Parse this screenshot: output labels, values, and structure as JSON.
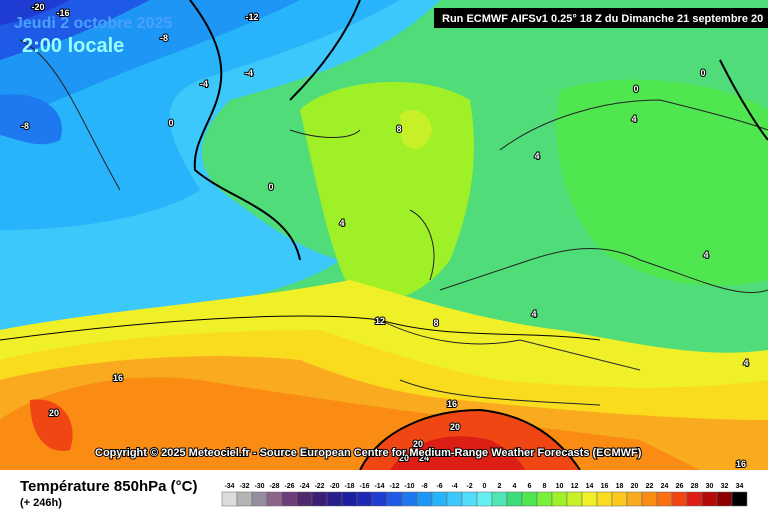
{
  "header": {
    "date": "Jeudi 2 octobre 2025",
    "time": "2:00 locale",
    "run": "Run ECMWF AIFSv1 0.25° 18 Z du Dimanche 21 septembre 20"
  },
  "copyright": "Copyright © 2025 Meteociel.fr - Source European Centre for Medium-Range Weather Forecasts (ECMWF)",
  "contour_labels": [
    -20,
    -16,
    -12,
    -8,
    -8,
    -4,
    -4,
    0,
    0,
    0,
    0,
    4,
    4,
    4,
    4,
    4,
    4,
    8,
    8,
    12,
    16,
    16,
    16,
    20,
    20,
    20,
    20,
    24
  ],
  "footer": {
    "title": "Température 850hPa (°C)",
    "lead": "(+ 246h)"
  },
  "color_scale": {
    "values": [
      -34,
      -32,
      -30,
      -28,
      -26,
      -24,
      -22,
      -20,
      -18,
      -16,
      -14,
      -12,
      -10,
      -8,
      -6,
      -4,
      -2,
      0,
      2,
      4,
      6,
      8,
      10,
      12,
      14,
      16,
      18,
      20,
      22,
      24,
      26,
      28,
      30,
      32,
      34
    ],
    "colors": [
      "#dcdcdc",
      "#b4b4b4",
      "#968ca0",
      "#8c648c",
      "#6e3c78",
      "#50286e",
      "#3c1e78",
      "#281e8c",
      "#1e1ea0",
      "#1e28b4",
      "#1e3cd2",
      "#1e5ae6",
      "#1e78f0",
      "#1e96f5",
      "#28b4fa",
      "#3cc8fa",
      "#50dcfa",
      "#64f0f0",
      "#50e6b4",
      "#3cdc78",
      "#50e650",
      "#78f03c",
      "#a0f028",
      "#c8f028",
      "#f0f028",
      "#fadc1e",
      "#fac81e",
      "#faaa1e",
      "#fa8c14",
      "#fa6e14",
      "#f04614",
      "#dc1e14",
      "#b40a0a",
      "#8c0000",
      "#000000"
    ]
  }
}
